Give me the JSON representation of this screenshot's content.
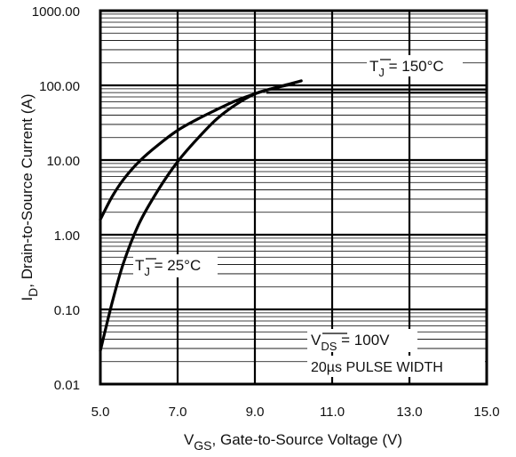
{
  "chart_data": {
    "type": "line",
    "title": "",
    "xlabel": {
      "main": "V",
      "sub": "GS",
      "rest": ", Gate-to-Source Voltage (V)"
    },
    "ylabel": {
      "main": "I",
      "sub": "D",
      "rest": ", Drain-to-Source Current  (A)"
    },
    "x_ticks": [
      "5.0",
      "7.0",
      "9.0",
      "11.0",
      "13.0",
      "15.0"
    ],
    "y_ticks": [
      "0.01",
      "0.10",
      "1.00",
      "10.00",
      "100.00",
      "1000.00"
    ],
    "xlim": [
      5.0,
      15.0
    ],
    "ylim": [
      0.01,
      1000
    ],
    "y_scale": "log",
    "grid": true,
    "series": [
      {
        "name": "TJ = 150°C",
        "x": [
          5.0,
          5.3,
          5.6,
          6.0,
          6.5,
          7.0,
          7.5,
          8.0,
          8.5,
          9.0,
          9.5,
          10.2
        ],
        "y": [
          1.6,
          3.2,
          5.5,
          9.5,
          16,
          25,
          35,
          47,
          62,
          77,
          92,
          115
        ]
      },
      {
        "name": "TJ = 25°C",
        "x": [
          5.0,
          5.3,
          5.6,
          6.0,
          6.5,
          7.0,
          7.5,
          8.0,
          8.5,
          9.0,
          9.5,
          10.0
        ],
        "y": [
          0.028,
          0.12,
          0.42,
          1.4,
          4.0,
          9.5,
          19,
          35,
          55,
          77,
          92,
          105
        ]
      }
    ],
    "annotations": {
      "tj150": {
        "main": "T",
        "sub": "J",
        "rest": " = 150°C"
      },
      "tj25": {
        "main": "T",
        "sub": "J",
        "rest": " = 25°C"
      },
      "vds": {
        "main": "V",
        "sub": "DS",
        "rest": " = 100V"
      },
      "pulse": "20µs PULSE WIDTH"
    },
    "colors": {
      "line": "#000000",
      "grid": "#000000",
      "background": "#ffffff"
    }
  }
}
